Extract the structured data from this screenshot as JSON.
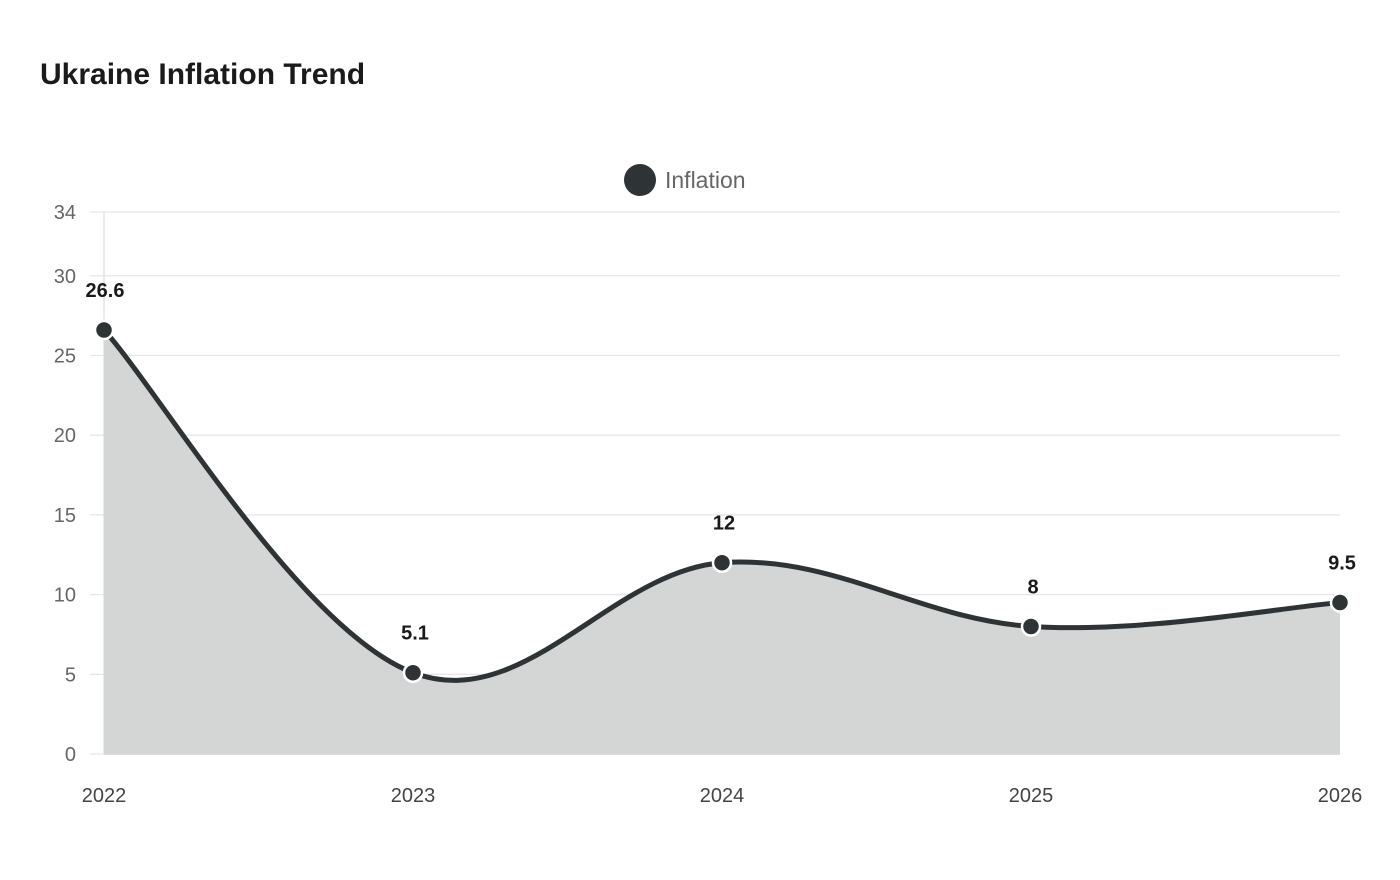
{
  "chart_data": {
    "type": "area",
    "title": "Ukraine Inflation Trend",
    "categories": [
      "2022",
      "2023",
      "2024",
      "2025",
      "2026"
    ],
    "series": [
      {
        "name": "Inflation",
        "values": [
          26.6,
          5.1,
          12,
          8,
          9.5
        ],
        "color": "#2e3436",
        "fill": "#d4d5d5"
      }
    ],
    "yticks": [
      0,
      5,
      10,
      15,
      20,
      25,
      30,
      34
    ],
    "ylim": [
      0,
      34
    ],
    "xlabel": "",
    "ylabel": "",
    "legend": "top-center",
    "grid": true,
    "data_labels": [
      "26.6",
      "5.1",
      "12",
      "8",
      "9.5"
    ]
  }
}
